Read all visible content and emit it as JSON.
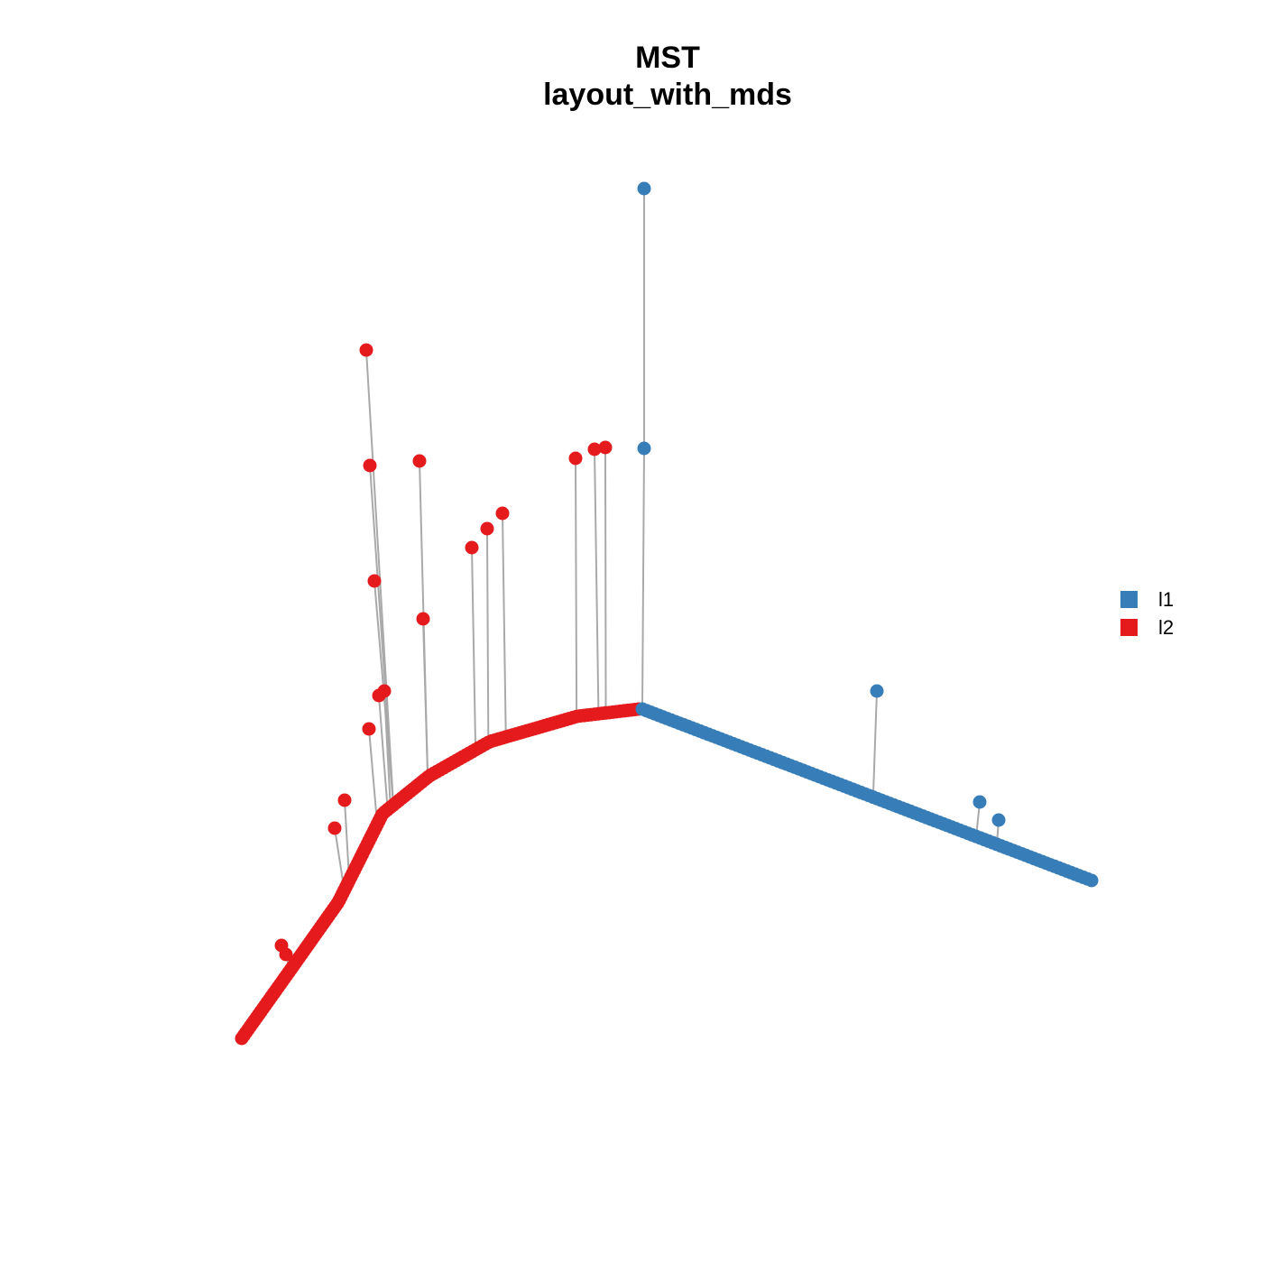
{
  "figure": {
    "title": "MST",
    "subtitle": "layout_with_mds"
  },
  "legend": {
    "placement": "right",
    "items": [
      {
        "label": "l1",
        "color": "#377EB8"
      },
      {
        "label": "l2",
        "color": "#E41A1C"
      }
    ]
  },
  "diagram": {
    "type": "minimum-spanning-tree",
    "edge_color": "#A9A9A9",
    "groups": [
      {
        "name": "l1",
        "color": "#377EB8"
      },
      {
        "name": "l2",
        "color": "#E41A1C"
      }
    ],
    "structure": {
      "backbone": "curved chain of l2 nodes joined at a junction to a straight chain of l1 nodes",
      "branches": "single leaf nodes attached to the backbone by grey edges"
    }
  }
}
